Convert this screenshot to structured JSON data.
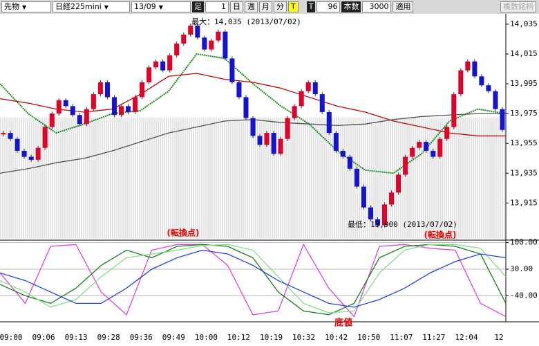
{
  "toolbar": {
    "market": "先物",
    "symbol": "日経225mini",
    "contract": "13/09",
    "bar_label": "足",
    "bar_value": "1",
    "periods": [
      "日",
      "週",
      "月",
      "分",
      "T"
    ],
    "tick_label": "T",
    "tick_value": "96",
    "count_label": "本数",
    "count_value": "3000",
    "apply": "適用",
    "multi": "複数銘柄"
  },
  "chart_data": [
    {
      "type": "candlestick",
      "up_color": "#e0002a",
      "down_color": "#1414d0",
      "values": [
        13962,
        13958,
        13950,
        13946,
        13944,
        13952,
        13966,
        13975,
        13984,
        13980,
        13974,
        13968,
        13978,
        13988,
        13996,
        13986,
        13974,
        13980,
        13976,
        13986,
        13996,
        14006,
        14010,
        14004,
        14014,
        14022,
        14028,
        14034,
        14026,
        14018,
        14024,
        14030,
        14012,
        13996,
        13986,
        13972,
        13960,
        13954,
        13962,
        13948,
        13958,
        13972,
        13980,
        13990,
        13996,
        13988,
        13976,
        13962,
        13950,
        13946,
        13938,
        13926,
        13912,
        13904,
        13900,
        13914,
        13922,
        13934,
        13946,
        13952,
        13956,
        13950,
        13946,
        13958,
        13966,
        13988,
        14004,
        14010,
        14000,
        13994,
        13990,
        13978,
        13964
      ],
      "series": [
        {
          "color": "#108a10",
          "values": [
            13995,
            13975,
            13962,
            13968,
            13975,
            13977,
            13990,
            14015,
            14012,
            13995,
            13980,
            13968,
            13950,
            13937,
            13935,
            13948,
            13970,
            13978,
            13975
          ]
        },
        {
          "color": "#c00000",
          "values": [
            13985,
            13982,
            13978,
            13976,
            13978,
            13988,
            14000,
            14002,
            13998,
            13996,
            13992,
            13986,
            13980,
            13976,
            13970,
            13966,
            13962,
            13960,
            13960
          ]
        },
        {
          "color": "#505050",
          "values": [
            13935,
            13938,
            13942,
            13945,
            13950,
            13956,
            13962,
            13966,
            13970,
            13971,
            13969,
            13968,
            13967,
            13968,
            13971,
            13973,
            13974,
            13975,
            13975
          ]
        }
      ],
      "ylim": [
        13891,
        14041
      ],
      "yticks": [
        {
          "value": 14035,
          "label": "14,035"
        },
        {
          "value": 14015,
          "label": "14,015"
        },
        {
          "value": 13995,
          "label": "13,995"
        },
        {
          "value": 13975,
          "label": "13,975"
        },
        {
          "value": 13955,
          "label": "13,955"
        },
        {
          "value": 13935,
          "label": "13,935"
        },
        {
          "value": 13915,
          "label": "13,915"
        }
      ],
      "annotations": [
        "最大：14,035 (2013/07/02)",
        "最低：13,900 (2013/07/02)",
        "(転換点)",
        "(転換点)"
      ]
    },
    {
      "type": "line",
      "series": [
        {
          "color": "#e040e0",
          "values": [
            20,
            -60,
            90,
            95,
            -30,
            -90,
            80,
            95,
            95,
            40,
            -90,
            -80,
            95,
            -20,
            -95,
            90,
            95,
            85,
            80,
            -60,
            -95
          ]
        },
        {
          "color": "#108010",
          "values": [
            -10,
            -40,
            -60,
            -20,
            40,
            80,
            60,
            90,
            95,
            90,
            60,
            -30,
            -80,
            -90,
            -60,
            60,
            90,
            95,
            90,
            70,
            -60
          ]
        },
        {
          "color": "#80e080",
          "values": [
            0,
            -30,
            -70,
            -50,
            10,
            60,
            70,
            80,
            92,
            95,
            80,
            10,
            -60,
            -85,
            -80,
            20,
            80,
            95,
            95,
            85,
            10
          ]
        },
        {
          "color": "#2040e0",
          "values": [
            20,
            0,
            -30,
            -60,
            -60,
            -20,
            30,
            60,
            80,
            70,
            40,
            0,
            -30,
            -60,
            -70,
            -50,
            -20,
            20,
            50,
            70,
            60
          ]
        }
      ],
      "ylim": [
        -103,
        101
      ],
      "yticks": [
        {
          "value": 100,
          "label": "100.00"
        },
        {
          "value": 30,
          "label": "30.00"
        },
        {
          "value": -40,
          "label": "-40.00"
        }
      ],
      "annotation": "底値",
      "x_labels": [
        "09:00",
        "09:06",
        "09:13",
        "09:28",
        "09:36",
        "09:49",
        "10:00",
        "10:12",
        "10:19",
        "10:32",
        "10:42",
        "10:50",
        "11:07",
        "11:27",
        "12:04",
        "12"
      ]
    }
  ]
}
